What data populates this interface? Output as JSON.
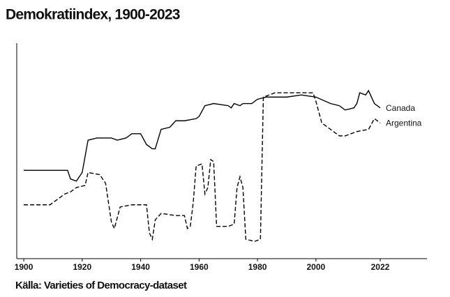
{
  "chart_data": {
    "type": "line",
    "title": "Demokratiindex, 1900-2023",
    "source": "Källa: Varieties of Democracy-dataset",
    "xlim": [
      1897.6,
      2038
    ],
    "xticks": [
      1900,
      1920,
      1940,
      1960,
      1980,
      2000,
      2022
    ],
    "ylim": [
      0,
      1
    ],
    "series": [
      {
        "name": "Canada",
        "color": "#000000",
        "dash": false,
        "x": [
          1900,
          1905,
          1910,
          1915,
          1916,
          1918,
          1920,
          1922,
          1925,
          1930,
          1932,
          1935,
          1937,
          1940,
          1942,
          1944,
          1945,
          1947,
          1950,
          1952,
          1955,
          1959,
          1960,
          1962,
          1965,
          1970,
          1971,
          1972,
          1974,
          1975,
          1978,
          1980,
          1983,
          1985,
          1990,
          1995,
          2000,
          2005,
          2008,
          2010,
          2013,
          2014,
          2015,
          2017,
          2018,
          2020,
          2022
        ],
        "values": [
          0.41,
          0.41,
          0.41,
          0.41,
          0.37,
          0.36,
          0.4,
          0.55,
          0.56,
          0.56,
          0.55,
          0.56,
          0.58,
          0.58,
          0.53,
          0.51,
          0.51,
          0.6,
          0.61,
          0.64,
          0.64,
          0.65,
          0.66,
          0.71,
          0.72,
          0.71,
          0.7,
          0.72,
          0.71,
          0.72,
          0.72,
          0.74,
          0.75,
          0.75,
          0.75,
          0.76,
          0.75,
          0.72,
          0.71,
          0.69,
          0.7,
          0.72,
          0.77,
          0.76,
          0.78,
          0.72,
          0.7
        ]
      },
      {
        "name": "Argentina",
        "color": "#000000",
        "dash": true,
        "x": [
          1900,
          1905,
          1909,
          1912,
          1914,
          1916,
          1918,
          1921,
          1922,
          1926,
          1928,
          1930,
          1931,
          1933,
          1937,
          1942,
          1943,
          1944,
          1945,
          1947,
          1952,
          1955,
          1956,
          1957,
          1958,
          1959,
          1961,
          1962,
          1963,
          1964,
          1965,
          1966,
          1970,
          1972,
          1973,
          1974,
          1975,
          1976,
          1979,
          1981,
          1982,
          1986,
          1990,
          1995,
          1999,
          2000,
          2002,
          2005,
          2008,
          2010,
          2014,
          2018,
          2020,
          2022
        ],
        "values": [
          0.25,
          0.25,
          0.25,
          0.28,
          0.3,
          0.31,
          0.33,
          0.34,
          0.4,
          0.39,
          0.35,
          0.17,
          0.14,
          0.24,
          0.25,
          0.25,
          0.12,
          0.09,
          0.18,
          0.21,
          0.2,
          0.2,
          0.14,
          0.15,
          0.26,
          0.43,
          0.44,
          0.3,
          0.33,
          0.46,
          0.45,
          0.15,
          0.15,
          0.16,
          0.33,
          0.38,
          0.33,
          0.09,
          0.08,
          0.09,
          0.75,
          0.77,
          0.77,
          0.77,
          0.77,
          0.73,
          0.63,
          0.6,
          0.57,
          0.57,
          0.59,
          0.6,
          0.65,
          0.63
        ]
      }
    ]
  }
}
